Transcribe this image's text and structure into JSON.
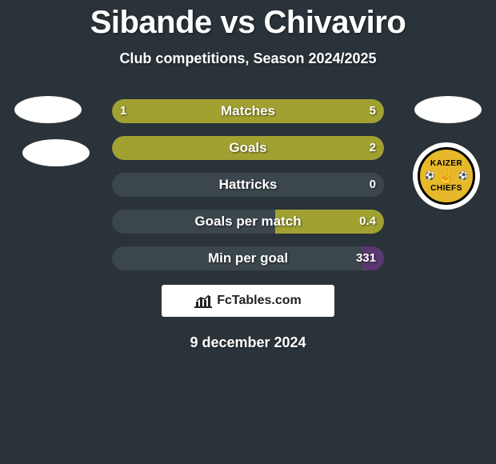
{
  "title": "Sibande vs Chivaviro",
  "subtitle": "Club competitions, Season 2024/2025",
  "date": "9 december 2024",
  "attribution": "FcTables.com",
  "colors": {
    "background": "#2a3339",
    "bar_track": "#3b464d",
    "bar_green": "#a1a131",
    "bar_purple": "#5a3770",
    "text": "#ffffff"
  },
  "badge": {
    "top": "KAIZER",
    "bottom": "CHIEFS"
  },
  "rows": [
    {
      "label": "Matches",
      "left_val": "1",
      "right_val": "5",
      "left_pct": 16.7,
      "right_pct": 83.3,
      "left_color": "#a1a131",
      "right_color": "#a1a131",
      "full": true
    },
    {
      "label": "Goals",
      "left_val": "",
      "right_val": "2",
      "left_pct": 0,
      "right_pct": 100,
      "left_color": "#a1a131",
      "right_color": "#a1a131",
      "full": true
    },
    {
      "label": "Hattricks",
      "left_val": "",
      "right_val": "0",
      "left_pct": 0,
      "right_pct": 0,
      "left_color": "#a1a131",
      "right_color": "#a1a131",
      "full": false
    },
    {
      "label": "Goals per match",
      "left_val": "",
      "right_val": "0.4",
      "left_pct": 0,
      "right_pct": 40,
      "left_color": "#a1a131",
      "right_color": "#a1a131",
      "full": false
    },
    {
      "label": "Min per goal",
      "left_val": "",
      "right_val": "331",
      "left_pct": 0,
      "right_pct": 8,
      "left_color": "#5a3770",
      "right_color": "#5a3770",
      "full": false
    }
  ]
}
